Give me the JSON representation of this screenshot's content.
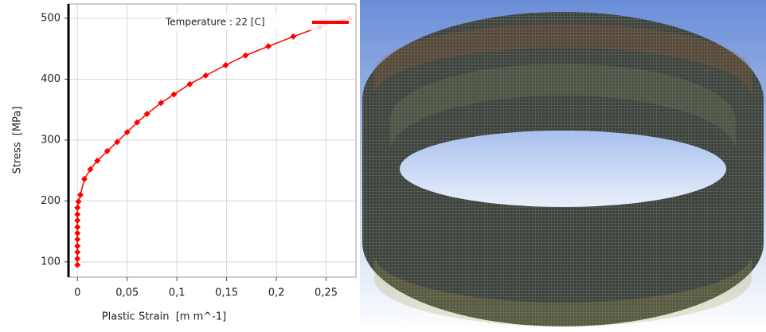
{
  "chart_data": {
    "type": "line",
    "x_label": "Plastic Strain  [m m^-1]",
    "y_label": "Stress  [MPa]",
    "xlim": [
      -0.009,
      0.28
    ],
    "ylim": [
      75,
      523.5
    ],
    "xticks": [
      0,
      {
        "value": 0.05,
        "label": "0,05"
      },
      {
        "value": 0.1,
        "label": "0,1"
      },
      {
        "value": 0.15,
        "label": "0,15"
      },
      {
        "value": 0.2,
        "label": "0,2"
      },
      {
        "value": 0.25,
        "label": "0,25"
      }
    ],
    "yticks": [
      100,
      200,
      300,
      400,
      500
    ],
    "grid": true,
    "legend": "top-right",
    "series": [
      {
        "name": "Temperature : 22 [C]",
        "color": "#ff0000",
        "x": [
          0,
          0,
          0,
          0,
          0,
          0,
          0,
          0,
          0,
          0,
          0.001,
          0.003,
          0.007,
          0.013,
          0.02,
          0.03,
          0.04,
          0.05,
          0.06,
          0.07,
          0.084,
          0.097,
          0.113,
          0.129,
          0.149,
          0.169,
          0.192,
          0.217,
          0.244,
          0.25,
          0.274
        ],
        "values": [
          95,
          105,
          116,
          126,
          137,
          147,
          157,
          168,
          178,
          189,
          199,
          210,
          236,
          252,
          266,
          282,
          297,
          313,
          329,
          343,
          361,
          375,
          392,
          406,
          423,
          439,
          454,
          470,
          486,
          491,
          500
        ]
      }
    ]
  }
}
